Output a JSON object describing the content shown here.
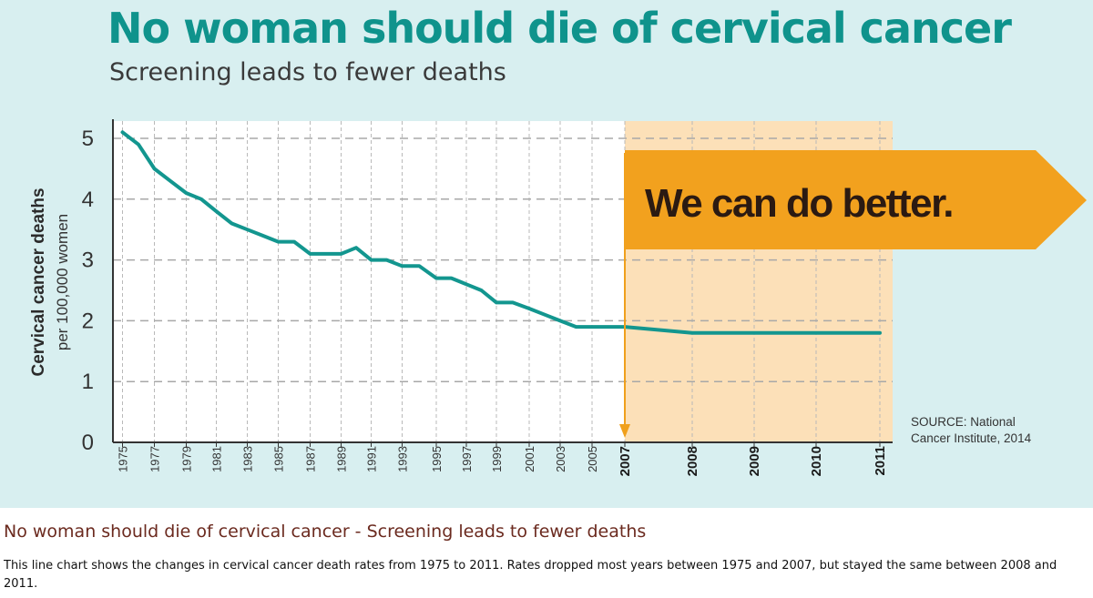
{
  "header": {
    "title": "No woman should die of cervical cancer",
    "subtitle": "Screening leads to fewer deaths"
  },
  "callout": {
    "text": "We can do better."
  },
  "source": {
    "line1": "SOURCE: National",
    "line2": "Cancer Institute, 2014"
  },
  "caption": {
    "title": "No woman should die of cervical cancer - Screening leads to fewer deaths",
    "description": "This line chart shows the changes in cervical cancer death rates from 1975 to 2011. Rates dropped most years between 1975 and 2007, but stayed the same between 2008 and 2011."
  },
  "colors": {
    "panel_bg": "#d8eff0",
    "title": "#0f938c",
    "line": "#13968f",
    "highlight_fill": "#fce0b8",
    "callout_fill": "#f2a11e",
    "arrow": "#f0a01c"
  },
  "chart_data": {
    "type": "line",
    "title": "",
    "ylabel": "Cervical cancer deaths",
    "ylabel_sub": "per 100,000 women",
    "xlabel": "",
    "ylim": [
      0,
      5.3
    ],
    "yticks": [
      0,
      1,
      2,
      3,
      4,
      5
    ],
    "grid": true,
    "x_tick_labels": [
      "1975",
      "1977",
      "1979",
      "1981",
      "1983",
      "1985",
      "1987",
      "1989",
      "1991",
      "1993",
      "1995",
      "1997",
      "1999",
      "2001",
      "2003",
      "2005",
      "2007",
      "2008",
      "2009",
      "2010",
      "2011"
    ],
    "highlight_start": 2007,
    "series": [
      {
        "x": [
          1975,
          1976,
          1977,
          1978,
          1979,
          1980,
          1981,
          1982,
          1983,
          1984,
          1985,
          1986,
          1987,
          1988,
          1989,
          1990,
          1991,
          1992,
          1993,
          1994,
          1995,
          1996,
          1997,
          1998,
          1999,
          2000,
          2001,
          2002,
          2003,
          2004,
          2005,
          2006,
          2007,
          2008,
          2009,
          2010,
          2011
        ],
        "values": [
          5.1,
          4.9,
          4.5,
          4.3,
          4.1,
          4.0,
          3.8,
          3.6,
          3.5,
          3.4,
          3.3,
          3.3,
          3.1,
          3.1,
          3.1,
          3.2,
          3.0,
          3.0,
          2.9,
          2.9,
          2.7,
          2.7,
          2.6,
          2.5,
          2.3,
          2.3,
          2.2,
          2.1,
          2.0,
          1.9,
          1.9,
          1.9,
          1.9,
          1.8,
          1.8,
          1.8,
          1.8
        ]
      }
    ]
  }
}
